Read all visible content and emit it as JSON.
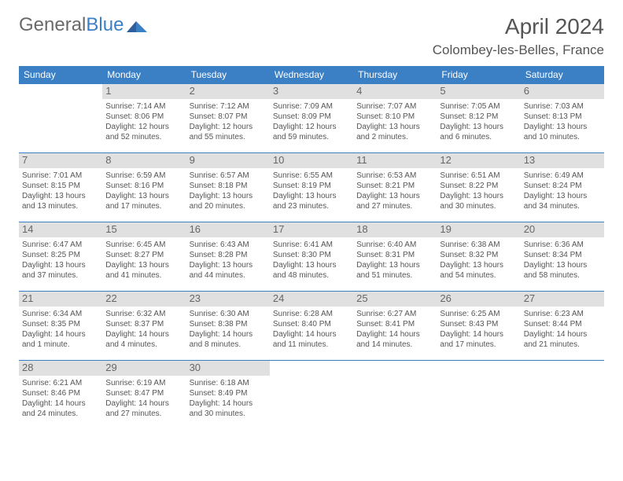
{
  "logo": {
    "word1": "General",
    "word2": "Blue"
  },
  "title": "April 2024",
  "location": "Colombey-les-Belles, France",
  "colors": {
    "header_bg": "#3b7fc4",
    "header_text": "#ffffff",
    "daynum_bg": "#e0e0e0",
    "text": "#555555",
    "border": "#3b7fc4",
    "page_bg": "#ffffff"
  },
  "weekdays": [
    "Sunday",
    "Monday",
    "Tuesday",
    "Wednesday",
    "Thursday",
    "Friday",
    "Saturday"
  ],
  "weeks": [
    [
      {
        "n": "",
        "empty": true
      },
      {
        "n": "1",
        "sr": "Sunrise: 7:14 AM",
        "ss": "Sunset: 8:06 PM",
        "d1": "Daylight: 12 hours",
        "d2": "and 52 minutes."
      },
      {
        "n": "2",
        "sr": "Sunrise: 7:12 AM",
        "ss": "Sunset: 8:07 PM",
        "d1": "Daylight: 12 hours",
        "d2": "and 55 minutes."
      },
      {
        "n": "3",
        "sr": "Sunrise: 7:09 AM",
        "ss": "Sunset: 8:09 PM",
        "d1": "Daylight: 12 hours",
        "d2": "and 59 minutes."
      },
      {
        "n": "4",
        "sr": "Sunrise: 7:07 AM",
        "ss": "Sunset: 8:10 PM",
        "d1": "Daylight: 13 hours",
        "d2": "and 2 minutes."
      },
      {
        "n": "5",
        "sr": "Sunrise: 7:05 AM",
        "ss": "Sunset: 8:12 PM",
        "d1": "Daylight: 13 hours",
        "d2": "and 6 minutes."
      },
      {
        "n": "6",
        "sr": "Sunrise: 7:03 AM",
        "ss": "Sunset: 8:13 PM",
        "d1": "Daylight: 13 hours",
        "d2": "and 10 minutes."
      }
    ],
    [
      {
        "n": "7",
        "sr": "Sunrise: 7:01 AM",
        "ss": "Sunset: 8:15 PM",
        "d1": "Daylight: 13 hours",
        "d2": "and 13 minutes."
      },
      {
        "n": "8",
        "sr": "Sunrise: 6:59 AM",
        "ss": "Sunset: 8:16 PM",
        "d1": "Daylight: 13 hours",
        "d2": "and 17 minutes."
      },
      {
        "n": "9",
        "sr": "Sunrise: 6:57 AM",
        "ss": "Sunset: 8:18 PM",
        "d1": "Daylight: 13 hours",
        "d2": "and 20 minutes."
      },
      {
        "n": "10",
        "sr": "Sunrise: 6:55 AM",
        "ss": "Sunset: 8:19 PM",
        "d1": "Daylight: 13 hours",
        "d2": "and 23 minutes."
      },
      {
        "n": "11",
        "sr": "Sunrise: 6:53 AM",
        "ss": "Sunset: 8:21 PM",
        "d1": "Daylight: 13 hours",
        "d2": "and 27 minutes."
      },
      {
        "n": "12",
        "sr": "Sunrise: 6:51 AM",
        "ss": "Sunset: 8:22 PM",
        "d1": "Daylight: 13 hours",
        "d2": "and 30 minutes."
      },
      {
        "n": "13",
        "sr": "Sunrise: 6:49 AM",
        "ss": "Sunset: 8:24 PM",
        "d1": "Daylight: 13 hours",
        "d2": "and 34 minutes."
      }
    ],
    [
      {
        "n": "14",
        "sr": "Sunrise: 6:47 AM",
        "ss": "Sunset: 8:25 PM",
        "d1": "Daylight: 13 hours",
        "d2": "and 37 minutes."
      },
      {
        "n": "15",
        "sr": "Sunrise: 6:45 AM",
        "ss": "Sunset: 8:27 PM",
        "d1": "Daylight: 13 hours",
        "d2": "and 41 minutes."
      },
      {
        "n": "16",
        "sr": "Sunrise: 6:43 AM",
        "ss": "Sunset: 8:28 PM",
        "d1": "Daylight: 13 hours",
        "d2": "and 44 minutes."
      },
      {
        "n": "17",
        "sr": "Sunrise: 6:41 AM",
        "ss": "Sunset: 8:30 PM",
        "d1": "Daylight: 13 hours",
        "d2": "and 48 minutes."
      },
      {
        "n": "18",
        "sr": "Sunrise: 6:40 AM",
        "ss": "Sunset: 8:31 PM",
        "d1": "Daylight: 13 hours",
        "d2": "and 51 minutes."
      },
      {
        "n": "19",
        "sr": "Sunrise: 6:38 AM",
        "ss": "Sunset: 8:32 PM",
        "d1": "Daylight: 13 hours",
        "d2": "and 54 minutes."
      },
      {
        "n": "20",
        "sr": "Sunrise: 6:36 AM",
        "ss": "Sunset: 8:34 PM",
        "d1": "Daylight: 13 hours",
        "d2": "and 58 minutes."
      }
    ],
    [
      {
        "n": "21",
        "sr": "Sunrise: 6:34 AM",
        "ss": "Sunset: 8:35 PM",
        "d1": "Daylight: 14 hours",
        "d2": "and 1 minute."
      },
      {
        "n": "22",
        "sr": "Sunrise: 6:32 AM",
        "ss": "Sunset: 8:37 PM",
        "d1": "Daylight: 14 hours",
        "d2": "and 4 minutes."
      },
      {
        "n": "23",
        "sr": "Sunrise: 6:30 AM",
        "ss": "Sunset: 8:38 PM",
        "d1": "Daylight: 14 hours",
        "d2": "and 8 minutes."
      },
      {
        "n": "24",
        "sr": "Sunrise: 6:28 AM",
        "ss": "Sunset: 8:40 PM",
        "d1": "Daylight: 14 hours",
        "d2": "and 11 minutes."
      },
      {
        "n": "25",
        "sr": "Sunrise: 6:27 AM",
        "ss": "Sunset: 8:41 PM",
        "d1": "Daylight: 14 hours",
        "d2": "and 14 minutes."
      },
      {
        "n": "26",
        "sr": "Sunrise: 6:25 AM",
        "ss": "Sunset: 8:43 PM",
        "d1": "Daylight: 14 hours",
        "d2": "and 17 minutes."
      },
      {
        "n": "27",
        "sr": "Sunrise: 6:23 AM",
        "ss": "Sunset: 8:44 PM",
        "d1": "Daylight: 14 hours",
        "d2": "and 21 minutes."
      }
    ],
    [
      {
        "n": "28",
        "sr": "Sunrise: 6:21 AM",
        "ss": "Sunset: 8:46 PM",
        "d1": "Daylight: 14 hours",
        "d2": "and 24 minutes."
      },
      {
        "n": "29",
        "sr": "Sunrise: 6:19 AM",
        "ss": "Sunset: 8:47 PM",
        "d1": "Daylight: 14 hours",
        "d2": "and 27 minutes."
      },
      {
        "n": "30",
        "sr": "Sunrise: 6:18 AM",
        "ss": "Sunset: 8:49 PM",
        "d1": "Daylight: 14 hours",
        "d2": "and 30 minutes."
      },
      {
        "n": "",
        "empty": true
      },
      {
        "n": "",
        "empty": true
      },
      {
        "n": "",
        "empty": true
      },
      {
        "n": "",
        "empty": true
      }
    ]
  ]
}
